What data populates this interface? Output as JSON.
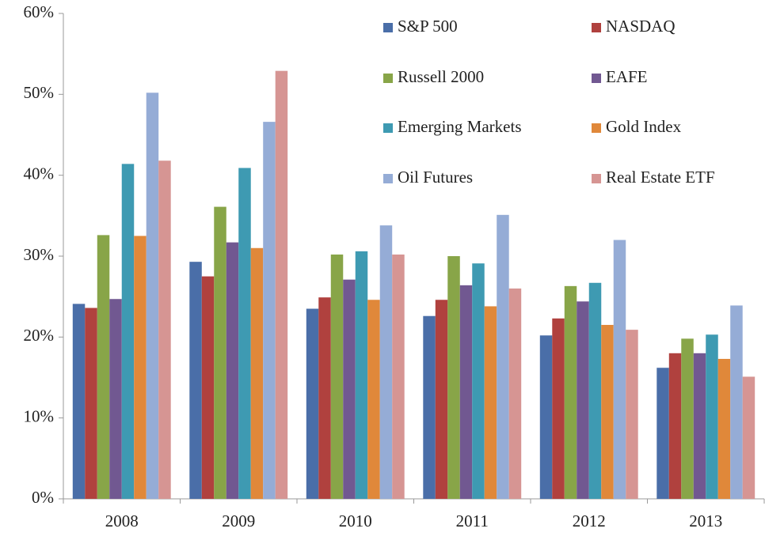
{
  "chart_data": {
    "type": "bar",
    "categories": [
      "2008",
      "2009",
      "2010",
      "2011",
      "2012",
      "2013"
    ],
    "series": [
      {
        "name": "S&P 500",
        "color": "#4a6ea8",
        "values": [
          24.1,
          29.3,
          23.5,
          22.6,
          20.2,
          16.2
        ]
      },
      {
        "name": "NASDAQ",
        "color": "#b0413e",
        "values": [
          23.6,
          27.5,
          24.9,
          24.6,
          22.3,
          18.0
        ]
      },
      {
        "name": "Russell 2000",
        "color": "#88a548",
        "values": [
          32.6,
          36.1,
          30.2,
          30.0,
          26.3,
          19.8
        ]
      },
      {
        "name": "EAFE",
        "color": "#715891",
        "values": [
          24.7,
          31.7,
          27.1,
          26.4,
          24.4,
          18.0
        ]
      },
      {
        "name": "Emerging Markets",
        "color": "#3e9ab2",
        "values": [
          41.4,
          40.9,
          30.6,
          29.1,
          26.7,
          20.3
        ]
      },
      {
        "name": "Gold Index",
        "color": "#e0883a",
        "values": [
          32.5,
          31.0,
          24.6,
          23.8,
          21.5,
          17.3
        ]
      },
      {
        "name": "Oil Futures",
        "color": "#95acd6",
        "values": [
          50.2,
          46.6,
          33.8,
          35.1,
          32.0,
          23.9
        ]
      },
      {
        "name": "Real Estate ETF",
        "color": "#d69593",
        "values": [
          41.8,
          52.9,
          30.2,
          26.0,
          20.9,
          15.1
        ]
      }
    ],
    "ylim": [
      0,
      60
    ],
    "yticks": [
      {
        "value": 0,
        "label": "0%"
      },
      {
        "value": 10,
        "label": "10%"
      },
      {
        "value": 20,
        "label": "20%"
      },
      {
        "value": 30,
        "label": "30%"
      },
      {
        "value": 40,
        "label": "40%"
      },
      {
        "value": 50,
        "label": "50%"
      },
      {
        "value": 60,
        "label": "60%"
      }
    ],
    "grid": false,
    "legend": "top-right"
  }
}
